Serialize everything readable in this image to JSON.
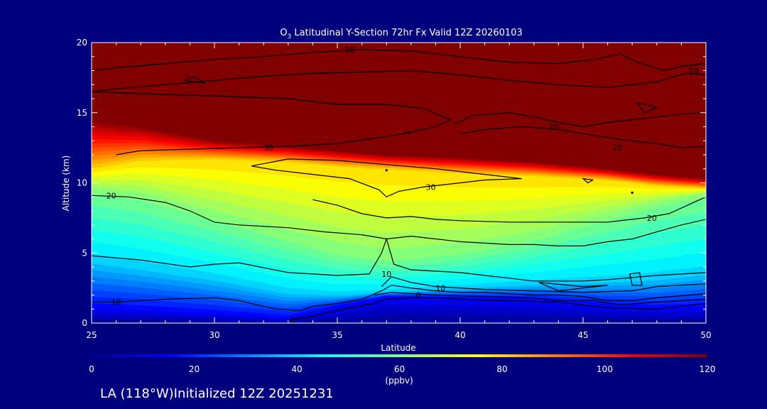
{
  "page": {
    "background": "#00007f",
    "footer_text": "LA (118°W)Initialized 12Z 20251231"
  },
  "chart_data": {
    "type": "heatmap",
    "title_prefix": "O",
    "title_subscript": "3",
    "title_suffix": " Latitudinal Y-Section 72hr  Fx Valid 12Z 20260103",
    "xlabel": "Latitude",
    "ylabel": "Altitude (km)",
    "xlim": [
      25,
      50
    ],
    "ylim": [
      0,
      20
    ],
    "xticks": [
      25,
      30,
      35,
      40,
      45,
      50
    ],
    "yticks": [
      0,
      5,
      10,
      15,
      20
    ],
    "colorbar": {
      "min": 0,
      "max": 120,
      "ticks": [
        0,
        20,
        40,
        60,
        80,
        100,
        120
      ],
      "unit": "(ppbv)",
      "colors": [
        "#00008f",
        "#0000ff",
        "#0080ff",
        "#00ffff",
        "#80ff80",
        "#ffff00",
        "#ff8000",
        "#ff0000",
        "#800000"
      ]
    },
    "columns": [
      {
        "x": 25,
        "z0": 1.1,
        "z10": 4.5,
        "z20": 9.5,
        "zTop": 11.0,
        "z120": 14.5
      },
      {
        "x": 27,
        "z0": 1.0,
        "z10": 4.0,
        "z20": 9.0,
        "zTop": 11.6,
        "z120": 14.0
      },
      {
        "x": 30,
        "z0": 0.7,
        "z10": 3.2,
        "z20": 7.5,
        "zTop": 11.7,
        "z120": 13.0
      },
      {
        "x": 33,
        "z0": 0.4,
        "z10": 2.2,
        "z20": 6.0,
        "zTop": 11.5,
        "z120": 12.6
      },
      {
        "x": 35,
        "z0": 1.2,
        "z10": 2.0,
        "z20": 5.0,
        "zTop": 11.2,
        "z120": 12.3
      },
      {
        "x": 37,
        "z0": 1.9,
        "z10": 2.2,
        "z20": 4.5,
        "zTop": 11.0,
        "z120": 12.0
      },
      {
        "x": 40,
        "z0": 1.8,
        "z10": 2.5,
        "z20": 5.0,
        "zTop": 10.7,
        "z120": 11.8
      },
      {
        "x": 43,
        "z0": 1.7,
        "z10": 2.8,
        "z20": 6.0,
        "zTop": 10.5,
        "z120": 11.5
      },
      {
        "x": 46,
        "z0": 1.3,
        "z10": 3.0,
        "z20": 7.5,
        "zTop": 10.2,
        "z120": 11.0
      },
      {
        "x": 48,
        "z0": 1.1,
        "z10": 3.2,
        "z20": 8.5,
        "zTop": 9.8,
        "z120": 10.6
      },
      {
        "x": 50,
        "z0": 1.2,
        "z10": 3.6,
        "z20": 9.2,
        "zTop": 9.6,
        "z120": 10.3
      }
    ],
    "contours": [
      {
        "level": 0,
        "label": "0",
        "label_at": [
          33.2,
          0.2
        ],
        "points": [
          [
            33,
            0.2
          ],
          [
            34,
            0.5
          ],
          [
            35,
            0.9
          ],
          [
            36.5,
            1.4
          ],
          [
            37,
            1.7
          ],
          [
            38,
            1.8
          ],
          [
            39,
            1.8
          ],
          [
            40,
            1.7
          ],
          [
            42,
            1.6
          ],
          [
            44,
            1.5
          ],
          [
            45,
            1.3
          ],
          [
            46,
            1.1
          ],
          [
            48,
            1.0
          ],
          [
            49,
            1.2
          ],
          [
            50,
            1.4
          ]
        ]
      },
      {
        "level": 0,
        "label": "0",
        "label_at": [
          38.3,
          2.0
        ],
        "points": [
          [
            36.5,
            2.0
          ],
          [
            37.2,
            2.2
          ],
          [
            38,
            2.1
          ],
          [
            39,
            2.0
          ],
          [
            41,
            1.9
          ],
          [
            43,
            1.8
          ],
          [
            44,
            1.6
          ],
          [
            45.5,
            1.6
          ],
          [
            46.5,
            1.3
          ],
          [
            48,
            1.5
          ],
          [
            50,
            1.7
          ]
        ]
      },
      {
        "level": 10,
        "label": "10",
        "label_at": [
          26,
          1.5
        ],
        "points": [
          [
            25,
            1.5
          ],
          [
            26,
            1.5
          ],
          [
            28,
            1.7
          ],
          [
            30,
            1.8
          ],
          [
            31,
            1.6
          ],
          [
            32.5,
            1.0
          ],
          [
            33.5,
            0.9
          ],
          [
            34,
            1.2
          ],
          [
            35,
            1.4
          ],
          [
            36,
            1.7
          ],
          [
            36.8,
            2.3
          ],
          [
            37.2,
            2.7
          ],
          [
            38,
            2.5
          ],
          [
            39,
            2.3
          ],
          [
            40,
            2.2
          ],
          [
            41,
            2.2
          ],
          [
            42,
            2.1
          ],
          [
            43,
            2.0
          ],
          [
            44,
            2.0
          ],
          [
            45,
            1.9
          ],
          [
            46,
            1.6
          ],
          [
            47,
            1.6
          ],
          [
            48,
            1.8
          ],
          [
            50,
            2.1
          ]
        ]
      },
      {
        "level": 10,
        "label": "10",
        "label_at": [
          39.2,
          2.5
        ],
        "points": [
          [
            36.8,
            2.6
          ],
          [
            37.2,
            3.3
          ],
          [
            38,
            2.9
          ],
          [
            39,
            2.6
          ],
          [
            41,
            2.4
          ],
          [
            43,
            2.3
          ],
          [
            45,
            2.2
          ],
          [
            47,
            2.3
          ],
          [
            48,
            2.6
          ],
          [
            50,
            2.8
          ]
        ]
      },
      {
        "level": 10,
        "label": "10",
        "label_at": [
          37,
          3.5
        ],
        "points": [
          [
            25,
            4.8
          ],
          [
            27,
            4.5
          ],
          [
            29,
            4.0
          ],
          [
            30,
            4.2
          ],
          [
            31,
            4.3
          ],
          [
            33,
            3.6
          ],
          [
            35,
            3.4
          ],
          [
            36.3,
            3.5
          ],
          [
            36.8,
            5.0
          ],
          [
            37,
            6.0
          ],
          [
            37.3,
            4.2
          ],
          [
            38,
            3.8
          ],
          [
            39,
            3.7
          ],
          [
            40,
            3.6
          ],
          [
            41,
            3.4
          ],
          [
            42,
            3.2
          ],
          [
            43,
            3.0
          ],
          [
            45,
            3.0
          ],
          [
            46,
            3.1
          ],
          [
            48,
            3.4
          ],
          [
            50,
            3.6
          ]
        ]
      },
      {
        "level": 20,
        "label": "20",
        "label_at": [
          25.8,
          9.1
        ],
        "points": [
          [
            25,
            9.1
          ],
          [
            26.5,
            9.0
          ],
          [
            28,
            8.6
          ],
          [
            29,
            8.0
          ],
          [
            30,
            7.2
          ],
          [
            31,
            7.0
          ],
          [
            33,
            6.8
          ],
          [
            34.5,
            6.5
          ],
          [
            36,
            6.3
          ],
          [
            37,
            6.0
          ],
          [
            38,
            6.2
          ],
          [
            39,
            6.0
          ],
          [
            40,
            5.8
          ],
          [
            41,
            5.7
          ],
          [
            42,
            5.6
          ],
          [
            43,
            5.6
          ],
          [
            44,
            5.5
          ],
          [
            45,
            5.5
          ],
          [
            46,
            5.8
          ],
          [
            47,
            6.0
          ],
          [
            48,
            6.5
          ],
          [
            49,
            7.0
          ],
          [
            50,
            7.4
          ]
        ]
      },
      {
        "level": 20,
        "label": "20",
        "label_at": [
          47.8,
          7.5
        ],
        "points": [
          [
            34,
            8.8
          ],
          [
            35,
            8.4
          ],
          [
            36,
            7.8
          ],
          [
            37,
            7.5
          ],
          [
            38,
            7.6
          ],
          [
            39,
            7.4
          ],
          [
            40,
            7.3
          ],
          [
            42,
            7.2
          ],
          [
            44,
            7.2
          ],
          [
            46,
            7.2
          ],
          [
            47.5,
            7.5
          ],
          [
            48.5,
            7.8
          ],
          [
            49.5,
            8.6
          ],
          [
            50,
            9.0
          ]
        ]
      },
      {
        "level": 30,
        "label": "30",
        "label_at": [
          38.8,
          9.7
        ],
        "points": [
          [
            31.5,
            11.2
          ],
          [
            32.5,
            10.9
          ],
          [
            34,
            10.6
          ],
          [
            35.5,
            10.3
          ],
          [
            36.7,
            9.5
          ],
          [
            37,
            9.0
          ],
          [
            37.5,
            9.4
          ],
          [
            38.5,
            9.7
          ],
          [
            40,
            10.0
          ],
          [
            41,
            10.2
          ],
          [
            42.5,
            10.3
          ],
          [
            41,
            10.6
          ],
          [
            39,
            11.0
          ],
          [
            37,
            11.3
          ],
          [
            35,
            11.6
          ],
          [
            33,
            11.7
          ],
          [
            31.5,
            11.2
          ]
        ]
      },
      {
        "level": 30,
        "label": "30",
        "label_at": [
          32.2,
          12.5
        ],
        "points": [
          [
            26,
            12.0
          ],
          [
            27,
            12.3
          ],
          [
            29,
            12.4
          ],
          [
            31,
            12.5
          ],
          [
            33,
            12.6
          ],
          [
            35,
            12.8
          ],
          [
            37,
            13.3
          ],
          [
            38,
            13.6
          ],
          [
            39,
            14.0
          ],
          [
            39.6,
            14.5
          ],
          [
            38.5,
            15.3
          ],
          [
            37,
            15.6
          ],
          [
            35,
            15.6
          ],
          [
            33,
            16.0
          ],
          [
            30,
            16.2
          ],
          [
            28,
            16.3
          ],
          [
            25,
            16.5
          ]
        ]
      },
      {
        "level": 20,
        "label": "20",
        "label_at": [
          46.4,
          12.5
        ],
        "points": [
          [
            40,
            13.5
          ],
          [
            41,
            13.8
          ],
          [
            42.5,
            14.0
          ],
          [
            44,
            13.8
          ],
          [
            45,
            13.5
          ],
          [
            46.5,
            13.1
          ],
          [
            48,
            12.8
          ],
          [
            49,
            12.5
          ],
          [
            50,
            12.6
          ]
        ]
      },
      {
        "level": 20,
        "label": "20",
        "label_at": [
          43.8,
          14.0
        ],
        "points": [
          [
            39.8,
            14.2
          ],
          [
            40.5,
            14.8
          ],
          [
            42,
            15.0
          ],
          [
            43,
            14.7
          ],
          [
            44,
            14.3
          ],
          [
            45,
            14.0
          ],
          [
            46,
            14.3
          ],
          [
            47,
            14.5
          ],
          [
            48,
            14.7
          ],
          [
            49,
            14.9
          ],
          [
            50,
            15.0
          ]
        ]
      },
      {
        "level": 10,
        "label": "10",
        "label_at": [
          35.5,
          19.5
        ],
        "points": [
          [
            25,
            18
          ],
          [
            26,
            18.2
          ],
          [
            28,
            18.5
          ],
          [
            30,
            18.8
          ],
          [
            32,
            19.0
          ],
          [
            34,
            19.3
          ],
          [
            36,
            19.5
          ],
          [
            38,
            19.4
          ],
          [
            40,
            19.0
          ],
          [
            42,
            18.6
          ],
          [
            44,
            18.5
          ],
          [
            45.5,
            18.8
          ],
          [
            46.5,
            19.2
          ],
          [
            47.2,
            18.6
          ],
          [
            48.3,
            18.0
          ],
          [
            49,
            18.3
          ],
          [
            50,
            18.5
          ]
        ]
      },
      {
        "level": 10,
        "label": "10",
        "label_at": [
          49.5,
          18.0
        ],
        "points": [
          [
            25,
            16.5
          ],
          [
            26,
            16.7
          ],
          [
            28,
            17.0
          ],
          [
            30,
            17.3
          ],
          [
            32,
            17.6
          ],
          [
            34,
            17.8
          ],
          [
            36,
            17.9
          ],
          [
            38,
            18.0
          ],
          [
            40,
            17.7
          ],
          [
            42,
            17.3
          ],
          [
            44,
            17.0
          ],
          [
            46,
            16.8
          ],
          [
            48,
            17.2
          ],
          [
            49.2,
            17.8
          ],
          [
            50,
            17.7
          ]
        ]
      }
    ],
    "closed_small_contours": [
      {
        "points": [
          [
            28.8,
            17.3
          ],
          [
            29.6,
            17.1
          ],
          [
            29.2,
            17.6
          ],
          [
            28.8,
            17.3
          ]
        ]
      },
      {
        "points": [
          [
            47.2,
            15.7
          ],
          [
            48.0,
            15.4
          ],
          [
            47.5,
            15.0
          ],
          [
            47.2,
            15.7
          ]
        ]
      },
      {
        "points": [
          [
            45.0,
            10.3
          ],
          [
            45.4,
            10.2
          ],
          [
            45.2,
            10.0
          ],
          [
            45.0,
            10.3
          ]
        ]
      },
      {
        "points": [
          [
            46.9,
            3.5
          ],
          [
            47.3,
            3.6
          ],
          [
            47.4,
            2.7
          ],
          [
            47.0,
            2.7
          ],
          [
            46.9,
            3.5
          ]
        ]
      },
      {
        "points": [
          [
            43.2,
            2.9
          ],
          [
            45.0,
            2.6
          ],
          [
            46.0,
            2.7
          ],
          [
            44.0,
            2.3
          ],
          [
            43.2,
            2.9
          ]
        ]
      }
    ]
  }
}
